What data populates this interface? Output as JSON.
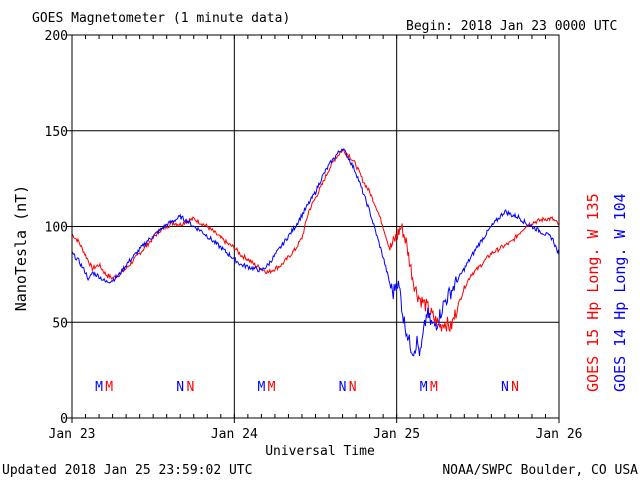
{
  "header": {
    "title": "GOES Magnetometer (1 minute data)",
    "begin": "Begin:  2018 Jan 23 0000 UTC"
  },
  "footer": {
    "updated": "Updated 2018 Jan 25 23:59:02 UTC",
    "source": "NOAA/SWPC Boulder, CO USA"
  },
  "chart_data": {
    "type": "line",
    "title": "GOES Magnetometer (1 minute data)",
    "xlabel": "Universal Time",
    "ylabel": "NanoTesla (nT)",
    "xlim": [
      0,
      72
    ],
    "ylim": [
      0,
      200
    ],
    "yticks": [
      0,
      50,
      100,
      150,
      200
    ],
    "xticks": [
      {
        "hour": 0,
        "label": "Jan 23"
      },
      {
        "hour": 24,
        "label": "Jan 24"
      },
      {
        "hour": 48,
        "label": "Jan 25"
      },
      {
        "hour": 72,
        "label": "Jan 26"
      }
    ],
    "grid": true,
    "colors": {
      "goes15": "#ff0000",
      "goes14": "#0000ff"
    },
    "series": [
      {
        "name": "GOES 15 Hp  Long. W 135",
        "color": "#ff0000",
        "x": [
          0,
          1,
          2,
          3,
          4,
          5,
          6,
          7,
          8,
          9,
          10,
          11,
          12,
          13,
          14,
          15,
          16,
          17,
          18,
          19,
          20,
          21,
          22,
          23,
          24,
          25,
          26,
          27,
          28,
          29,
          30,
          31,
          32,
          33,
          34,
          35,
          36,
          37,
          38,
          39,
          40,
          41,
          42,
          43,
          44,
          45,
          46,
          47,
          48,
          48.7,
          49.4,
          50,
          50.6,
          51,
          51.5,
          52,
          52.5,
          53,
          53.5,
          54,
          54.5,
          55,
          55.5,
          56,
          57,
          58,
          59,
          60,
          61,
          62,
          63,
          64,
          65,
          66,
          67,
          68,
          69,
          70,
          71,
          72
        ],
        "y": [
          96,
          92,
          85,
          78,
          80,
          75,
          73,
          75,
          78,
          82,
          86,
          90,
          94,
          98,
          100,
          102,
          101,
          103,
          104,
          102,
          100,
          97,
          94,
          91,
          89,
          85,
          83,
          80,
          78,
          76,
          78,
          80,
          84,
          88,
          94,
          108,
          115,
          122,
          130,
          136,
          140,
          137,
          132,
          124,
          118,
          110,
          100,
          88,
          95,
          100,
          92,
          80,
          70,
          65,
          62,
          60,
          58,
          55,
          52,
          50,
          48,
          50,
          49,
          47,
          58,
          68,
          75,
          78,
          82,
          86,
          88,
          90,
          92,
          96,
          100,
          102,
          103,
          104,
          104,
          101
        ]
      },
      {
        "name": "GOES 14 Hp  Long. W 104",
        "color": "#0000ff",
        "x": [
          0,
          1,
          2,
          2.5,
          3,
          4,
          5,
          6,
          7,
          8,
          9,
          10,
          11,
          12,
          13,
          14,
          15,
          16,
          17,
          18,
          19,
          20,
          21,
          22,
          23,
          24,
          25,
          26,
          27,
          28,
          29,
          30,
          31,
          32,
          33,
          34,
          35,
          36,
          37,
          38,
          39,
          40,
          41,
          42,
          43,
          44,
          45,
          46,
          47,
          47.5,
          48,
          48.5,
          49,
          49.5,
          50,
          50.5,
          51,
          51.5,
          52,
          52.5,
          53,
          53.5,
          54,
          54.5,
          55,
          56,
          57,
          58,
          59,
          60,
          61,
          62,
          63,
          64,
          65,
          66,
          67,
          68,
          69,
          70,
          71,
          72
        ],
        "y": [
          86,
          82,
          76,
          72,
          76,
          74,
          71,
          72,
          75,
          80,
          84,
          88,
          92,
          95,
          98,
          101,
          103,
          105,
          103,
          100,
          98,
          95,
          92,
          89,
          86,
          83,
          80,
          79,
          78,
          77,
          80,
          85,
          90,
          95,
          100,
          106,
          112,
          118,
          126,
          132,
          137,
          141,
          135,
          128,
          118,
          108,
          96,
          84,
          70,
          65,
          72,
          66,
          52,
          45,
          38,
          35,
          40,
          33,
          45,
          55,
          50,
          48,
          50,
          55,
          60,
          66,
          72,
          78,
          84,
          90,
          95,
          100,
          104,
          108,
          106,
          105,
          102,
          100,
          98,
          96,
          94,
          85
        ]
      }
    ],
    "annotations": [
      {
        "hour": 4.0,
        "text": "M",
        "color": "#0000ff"
      },
      {
        "hour": 5.5,
        "text": "M",
        "color": "#ff0000"
      },
      {
        "hour": 16.0,
        "text": "N",
        "color": "#0000ff"
      },
      {
        "hour": 17.5,
        "text": "N",
        "color": "#ff0000"
      },
      {
        "hour": 28.0,
        "text": "M",
        "color": "#0000ff"
      },
      {
        "hour": 29.5,
        "text": "M",
        "color": "#ff0000"
      },
      {
        "hour": 40.0,
        "text": "N",
        "color": "#0000ff"
      },
      {
        "hour": 41.5,
        "text": "N",
        "color": "#ff0000"
      },
      {
        "hour": 52.0,
        "text": "M",
        "color": "#0000ff"
      },
      {
        "hour": 53.5,
        "text": "M",
        "color": "#ff0000"
      },
      {
        "hour": 64.0,
        "text": "N",
        "color": "#0000ff"
      },
      {
        "hour": 65.5,
        "text": "N",
        "color": "#ff0000"
      }
    ]
  }
}
